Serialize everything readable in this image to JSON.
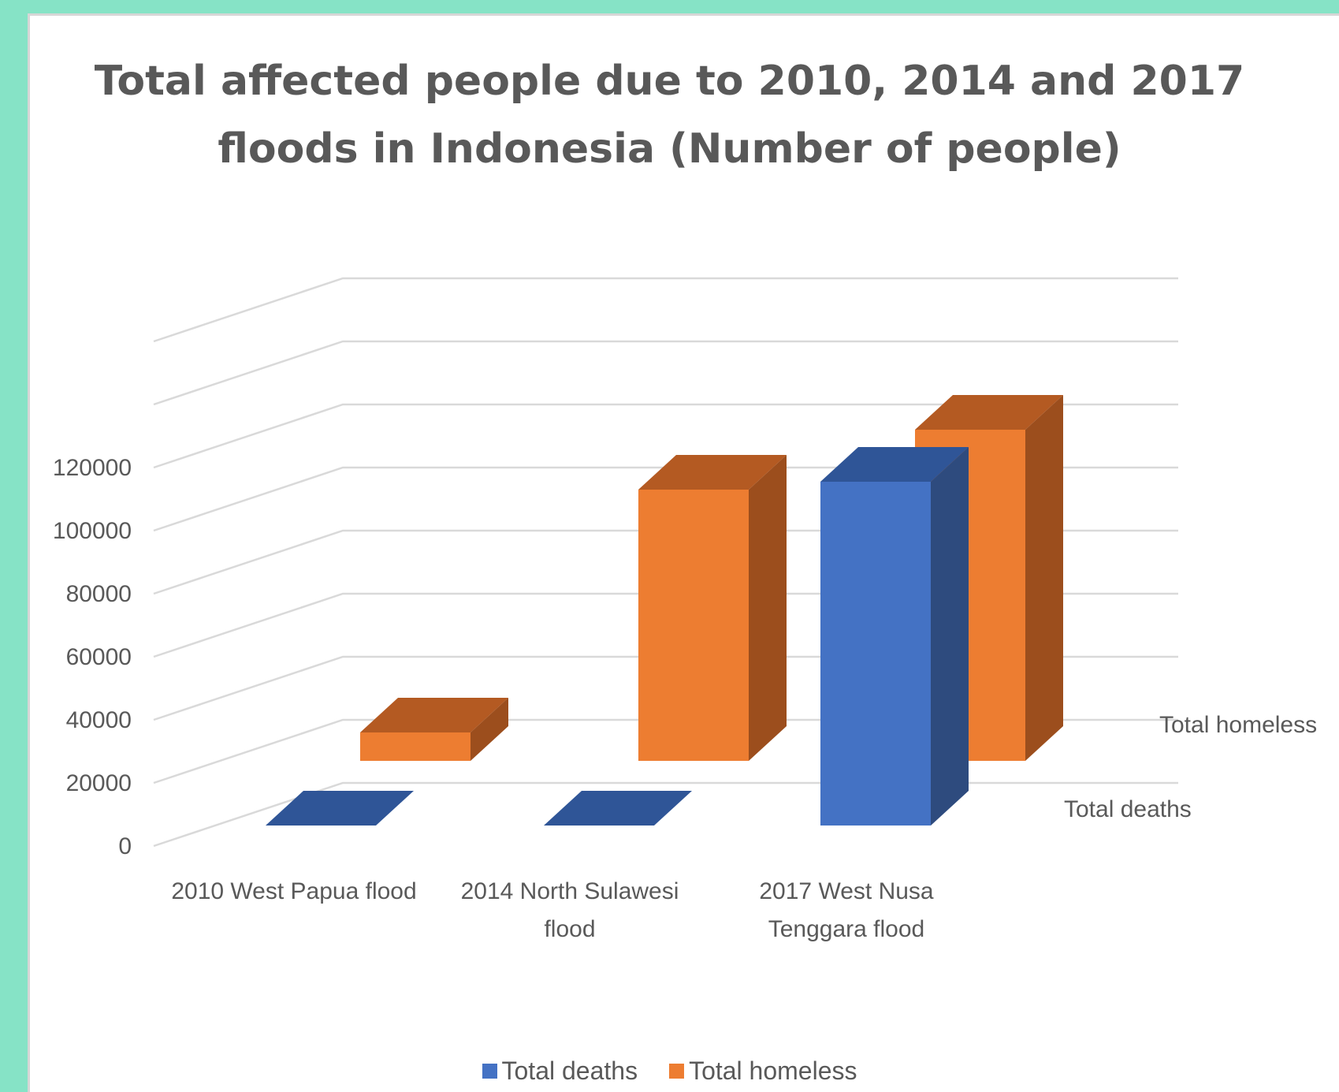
{
  "colors": {
    "background": "#86E3C6",
    "deaths_front": "#4472C4",
    "deaths_top": "#2F5597",
    "deaths_side": "#2E4B7E",
    "homeless_front": "#ED7D31",
    "homeless_top": "#B45A22",
    "homeless_side": "#9C4E1D",
    "grid": "#D9D9D9",
    "text": "#595959"
  },
  "chart_data": {
    "type": "bar",
    "style": "3d-column",
    "title_lines": [
      "Total affected people due to 2010, 2014 and 2017",
      "floods in Indonesia (Number of people)"
    ],
    "categories": [
      [
        "2010 West Papua flood"
      ],
      [
        "2014 North Sulawesi",
        "flood"
      ],
      [
        "2017 West Nusa",
        "Tenggara flood"
      ]
    ],
    "series": [
      {
        "name": "Total deaths",
        "values": [
          0,
          0,
          109000
        ]
      },
      {
        "name": "Total homeless",
        "values": [
          9000,
          86000,
          105000
        ]
      }
    ],
    "yticks": [
      0,
      20000,
      40000,
      60000,
      80000,
      100000,
      120000
    ],
    "ylim": [
      0,
      160000
    ],
    "grid": true,
    "legend_position": "bottom"
  }
}
